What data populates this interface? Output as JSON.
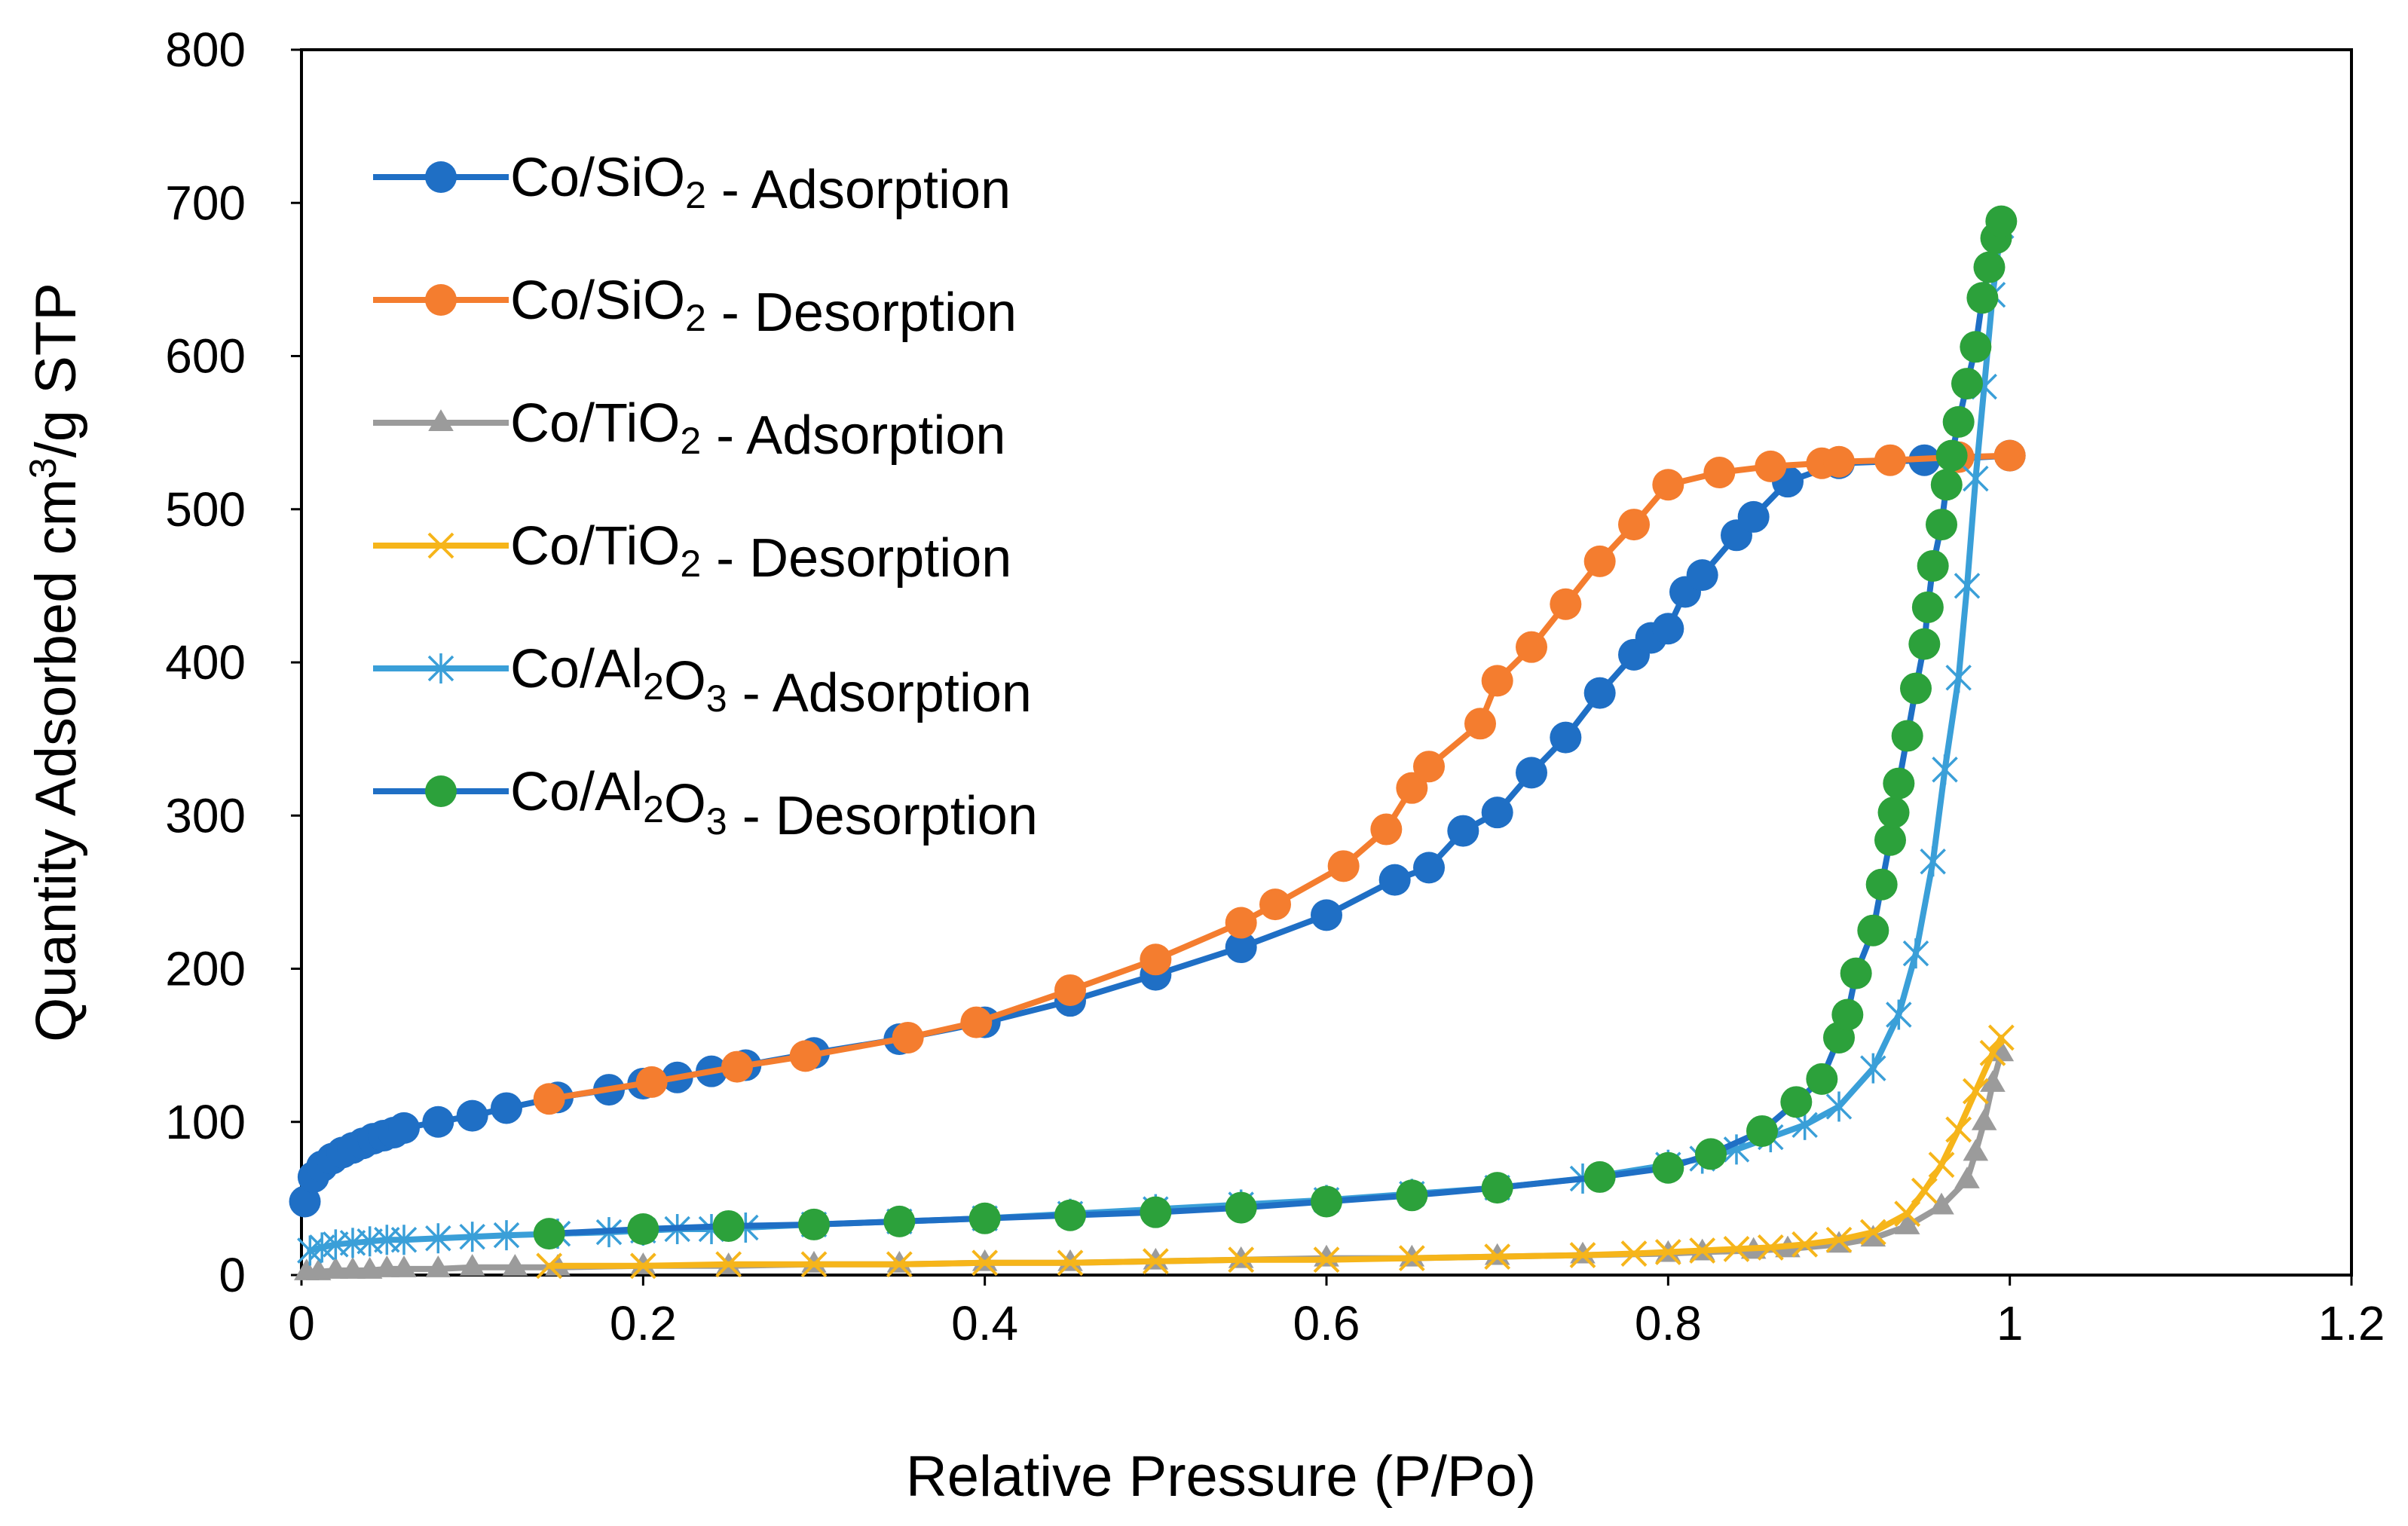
{
  "chart_data": {
    "type": "scatter",
    "xlabel": "Relative Pressure (P/Po)",
    "ylabel": {
      "before": "Quantity Adsorbed cm",
      "sup": "3",
      "after": "/g STP"
    },
    "xlim": [
      0,
      1.2
    ],
    "ylim": [
      0,
      800
    ],
    "xticks": [
      0,
      0.2,
      0.4,
      0.6,
      0.8,
      1,
      1.2
    ],
    "xtick_labels": [
      "0",
      "0.2",
      "0.4",
      "0.6",
      "0.8",
      "1",
      "1.2"
    ],
    "yticks": [
      0,
      100,
      200,
      300,
      400,
      500,
      600,
      700,
      800
    ],
    "ytick_labels": [
      "0",
      "100",
      "200",
      "300",
      "400",
      "500",
      "600",
      "700",
      "800"
    ],
    "grid": false,
    "legend_position": "top-left",
    "series": [
      {
        "name": "Co/SiO2 - Adsorption",
        "label_parts": [
          {
            "t": "Co/SiO"
          },
          {
            "t": "2",
            "sub": true
          },
          {
            "t": " - Adsorption"
          }
        ],
        "color": "#1F6FC5",
        "marker": "circle",
        "x": [
          0.002,
          0.007,
          0.012,
          0.018,
          0.024,
          0.03,
          0.036,
          0.042,
          0.048,
          0.054,
          0.06,
          0.08,
          0.1,
          0.12,
          0.15,
          0.18,
          0.2,
          0.22,
          0.24,
          0.26,
          0.3,
          0.35,
          0.4,
          0.45,
          0.5,
          0.55,
          0.6,
          0.64,
          0.66,
          0.68,
          0.7,
          0.72,
          0.74,
          0.76,
          0.78,
          0.79,
          0.8,
          0.81,
          0.82,
          0.84,
          0.85,
          0.87,
          0.9,
          0.95,
          1.0
        ],
        "y": [
          48,
          64,
          71,
          76,
          80,
          83,
          86,
          89,
          91,
          93,
          96,
          100,
          104,
          109,
          116,
          121,
          125,
          129,
          133,
          137,
          145,
          154,
          165,
          179,
          196,
          214,
          235,
          258,
          266,
          290,
          302,
          328,
          351,
          380,
          405,
          416,
          422,
          446,
          457,
          483,
          495,
          518,
          530,
          532,
          535
        ],
        "markers": true
      },
      {
        "name": "Co/SiO2 - Desorption",
        "label_parts": [
          {
            "t": "Co/SiO"
          },
          {
            "t": "2",
            "sub": true
          },
          {
            "t": " - Desorption"
          }
        ],
        "color": "#F47D2F",
        "marker": "circle",
        "x": [
          0.145,
          0.205,
          0.255,
          0.295,
          0.355,
          0.395,
          0.45,
          0.5,
          0.55,
          0.57,
          0.61,
          0.635,
          0.65,
          0.66,
          0.69,
          0.7,
          0.72,
          0.74,
          0.76,
          0.78,
          0.8,
          0.83,
          0.86,
          0.89,
          0.9,
          0.93,
          0.97,
          1.0
        ],
        "y": [
          115,
          126,
          136,
          143,
          155,
          165,
          186,
          206,
          230,
          242,
          267,
          291,
          318,
          332,
          360,
          388,
          410,
          438,
          466,
          490,
          516,
          524,
          528,
          530,
          531,
          532,
          534,
          535
        ],
        "markers": true
      },
      {
        "name": "Co/TiO2 - Adsorption",
        "label_parts": [
          {
            "t": "Co/TiO"
          },
          {
            "t": "2",
            "sub": true
          },
          {
            "t": " - Adsorption"
          }
        ],
        "color": "#9B9B9B",
        "marker": "triangle",
        "x": [
          0.003,
          0.01,
          0.02,
          0.03,
          0.04,
          0.05,
          0.06,
          0.08,
          0.1,
          0.125,
          0.15,
          0.2,
          0.25,
          0.3,
          0.35,
          0.4,
          0.45,
          0.5,
          0.55,
          0.6,
          0.65,
          0.7,
          0.75,
          0.8,
          0.82,
          0.85,
          0.87,
          0.9,
          0.92,
          0.94,
          0.96,
          0.975,
          0.98,
          0.985,
          0.99,
          0.995
        ],
        "y": [
          2,
          2,
          3,
          3,
          3,
          4,
          4,
          4,
          5,
          5,
          5,
          6,
          6,
          7,
          7,
          8,
          8,
          9,
          10,
          11,
          11,
          12,
          13,
          14,
          15,
          16,
          17,
          20,
          24,
          32,
          45,
          62,
          80,
          100,
          125,
          145
        ],
        "markers": true
      },
      {
        "name": "Co/TiO2 - Desorption",
        "label_parts": [
          {
            "t": "Co/TiO"
          },
          {
            "t": "2",
            "sub": true
          },
          {
            "t": " - Desorption"
          }
        ],
        "color": "#F6B51A",
        "marker": "x",
        "x": [
          0.145,
          0.2,
          0.25,
          0.3,
          0.35,
          0.4,
          0.45,
          0.5,
          0.55,
          0.6,
          0.65,
          0.7,
          0.75,
          0.78,
          0.8,
          0.82,
          0.84,
          0.86,
          0.88,
          0.9,
          0.92,
          0.94,
          0.95,
          0.96,
          0.97,
          0.98,
          0.99,
          0.995
        ],
        "y": [
          6,
          6,
          7,
          7,
          7,
          8,
          8,
          9,
          10,
          10,
          11,
          12,
          13,
          14,
          15,
          16,
          17,
          18,
          20,
          23,
          28,
          40,
          55,
          72,
          95,
          120,
          145,
          155
        ],
        "markers": true
      },
      {
        "name": "Co/Al2O3 - Adsorption",
        "label_parts": [
          {
            "t": "Co/Al"
          },
          {
            "t": "2",
            "sub": true
          },
          {
            "t": "O"
          },
          {
            "t": "3",
            "sub": true
          },
          {
            "t": " - Adsorption"
          }
        ],
        "color": "#3A9FD8",
        "marker": "asterisk",
        "x": [
          0.005,
          0.012,
          0.02,
          0.03,
          0.04,
          0.05,
          0.06,
          0.08,
          0.1,
          0.12,
          0.15,
          0.18,
          0.2,
          0.22,
          0.24,
          0.26,
          0.3,
          0.35,
          0.4,
          0.45,
          0.5,
          0.55,
          0.6,
          0.65,
          0.7,
          0.75,
          0.8,
          0.82,
          0.84,
          0.86,
          0.88,
          0.9,
          0.92,
          0.935,
          0.945,
          0.955,
          0.962,
          0.97,
          0.975,
          0.98,
          0.985,
          0.99,
          0.995
        ],
        "y": [
          16,
          18,
          20,
          21,
          22,
          23,
          23,
          24,
          25,
          26,
          27,
          28,
          29,
          30,
          30,
          31,
          33,
          35,
          37,
          40,
          43,
          46,
          49,
          53,
          57,
          63,
          72,
          76,
          82,
          90,
          98,
          110,
          135,
          170,
          210,
          270,
          330,
          390,
          450,
          520,
          580,
          640,
          685
        ],
        "markers": true
      },
      {
        "name": "Co/Al2O3 - Desorption",
        "label_parts": [
          {
            "t": "Co/Al"
          },
          {
            "t": "2",
            "sub": true
          },
          {
            "t": "O"
          },
          {
            "t": "3",
            "sub": true
          },
          {
            "t": " - Desorption"
          }
        ],
        "color": "#2CA13B",
        "line_color": "#1F6FC5",
        "marker": "circle",
        "x": [
          0.145,
          0.2,
          0.25,
          0.3,
          0.35,
          0.4,
          0.45,
          0.5,
          0.55,
          0.6,
          0.65,
          0.7,
          0.76,
          0.8,
          0.825,
          0.855,
          0.875,
          0.89,
          0.9,
          0.905,
          0.91,
          0.92,
          0.925,
          0.93,
          0.932,
          0.935,
          0.94,
          0.945,
          0.95,
          0.952,
          0.955,
          0.96,
          0.963,
          0.966,
          0.97,
          0.975,
          0.98,
          0.984,
          0.988,
          0.992,
          0.995
        ],
        "y": [
          27,
          30,
          32,
          33,
          35,
          37,
          39,
          41,
          44,
          48,
          52,
          57,
          64,
          70,
          79,
          94,
          113,
          128,
          155,
          170,
          197,
          225,
          255,
          284,
          302,
          321,
          352,
          383,
          412,
          436,
          463,
          490,
          516,
          535,
          557,
          582,
          606,
          638,
          658,
          677,
          688
        ],
        "markers": true
      }
    ]
  }
}
